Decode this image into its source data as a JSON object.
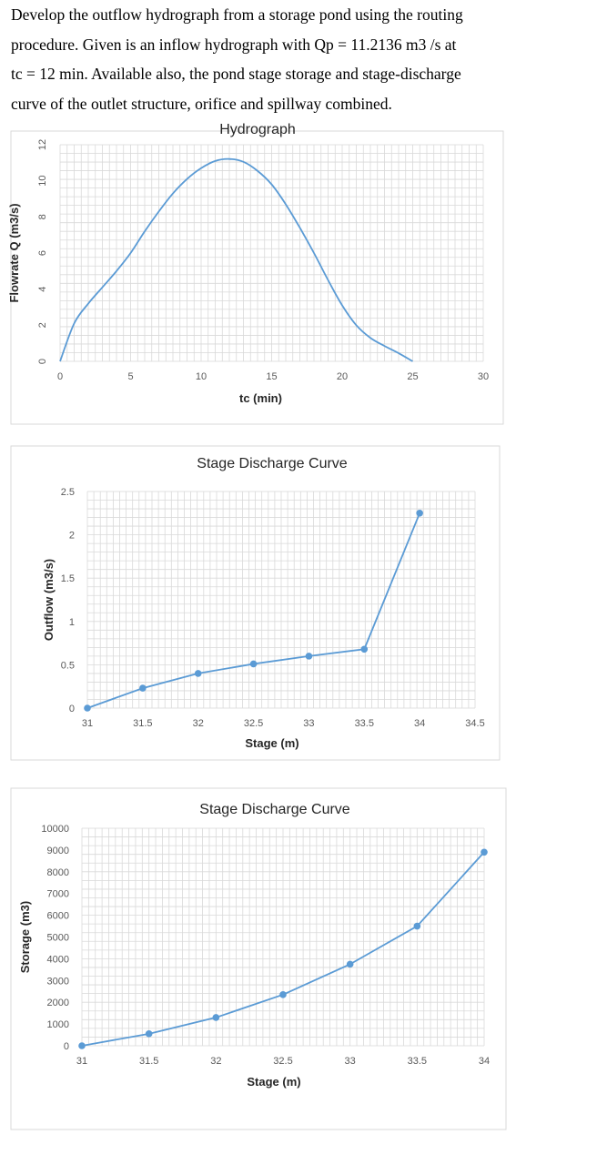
{
  "problem": {
    "lines": [
      "Develop the outflow hydrograph from a storage pond using the routing",
      "procedure. Given is an inflow hydrograph with Qp = 11.2136 m3 /s at",
      "tc = 12 min. Available also, the pond stage storage and stage-discharge",
      "curve of the outlet structure, orifice and spillway combined."
    ]
  },
  "colors": {
    "series": "#5b9bd5",
    "grid": "#d9d9d9",
    "tick_text": "#595959",
    "frame": "#d9d9d9"
  },
  "chart_data": [
    {
      "type": "line",
      "title": "Hydrograph",
      "xlabel": "tc (min)",
      "ylabel": "Flowrate Q (m3/s)",
      "xlim": [
        0,
        30
      ],
      "ylim": [
        0,
        12
      ],
      "xticks": [
        0,
        5,
        10,
        15,
        20,
        25,
        30
      ],
      "yticks": [
        0,
        2,
        4,
        6,
        8,
        10,
        12
      ],
      "grid": true,
      "markers": false,
      "legend": "none",
      "series": [
        {
          "x": [
            0,
            1,
            2,
            3,
            4,
            5,
            6,
            7,
            8,
            9,
            10,
            11,
            12,
            13,
            14,
            15,
            16,
            17,
            18,
            19,
            20,
            21,
            22,
            23,
            24,
            25
          ],
          "y": [
            0,
            2.1,
            3.2,
            4.1,
            5.0,
            6.0,
            7.2,
            8.3,
            9.3,
            10.1,
            10.7,
            11.1,
            11.21,
            11.05,
            10.55,
            9.8,
            8.7,
            7.4,
            6.0,
            4.5,
            3.1,
            2.0,
            1.3,
            0.85,
            0.45,
            0
          ]
        }
      ]
    },
    {
      "type": "line",
      "title": "Stage Discharge Curve",
      "xlabel": "Stage (m)",
      "ylabel": "Outflow (m3/s)",
      "xlim": [
        31,
        34.5
      ],
      "ylim": [
        0,
        2.5
      ],
      "xticks": [
        "31",
        "31.5",
        "32",
        "32.5",
        "33",
        "33.5",
        "34",
        "34.5"
      ],
      "yticks": [
        "0",
        "0.5",
        "1",
        "1.5",
        "2",
        "2.5"
      ],
      "grid": true,
      "markers": true,
      "legend": "none",
      "series": [
        {
          "x": [
            31,
            31.5,
            32,
            32.5,
            33,
            33.5,
            34
          ],
          "y": [
            0,
            0.23,
            0.4,
            0.51,
            0.6,
            0.68,
            2.25
          ]
        }
      ]
    },
    {
      "type": "line",
      "title": "Stage Discharge Curve",
      "xlabel": "Stage (m)",
      "ylabel": "Storage (m3)",
      "xlim": [
        31,
        34
      ],
      "ylim": [
        0,
        10000
      ],
      "xticks": [
        "31",
        "31.5",
        "32",
        "32.5",
        "33",
        "33.5",
        "34"
      ],
      "yticks": [
        "0",
        "1000",
        "2000",
        "3000",
        "4000",
        "5000",
        "6000",
        "7000",
        "8000",
        "9000",
        "10000"
      ],
      "grid": true,
      "markers": true,
      "legend": "none",
      "series": [
        {
          "x": [
            31,
            31.5,
            32,
            32.5,
            33,
            33.5,
            34
          ],
          "y": [
            0,
            550,
            1300,
            2350,
            3750,
            5500,
            8900
          ]
        }
      ]
    }
  ]
}
